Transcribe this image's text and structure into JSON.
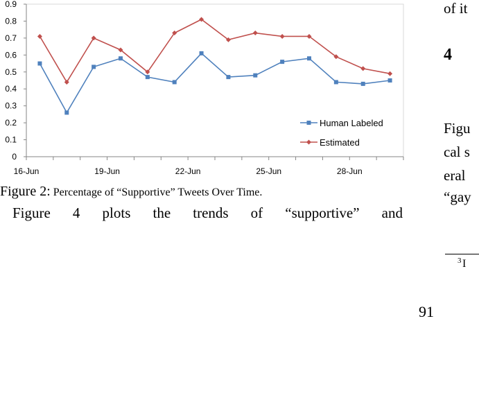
{
  "chart_data": {
    "type": "line",
    "title": "",
    "xlabel": "",
    "ylabel": "",
    "ylim": [
      0,
      0.9
    ],
    "yticks": [
      "0",
      "0.1",
      "0.2",
      "0.3",
      "0.4",
      "0.5",
      "0.6",
      "0.7",
      "0.8",
      "0.9"
    ],
    "x": [
      "16-Jun",
      "17-Jun",
      "18-Jun",
      "19-Jun",
      "20-Jun",
      "21-Jun",
      "22-Jun",
      "23-Jun",
      "24-Jun",
      "25-Jun",
      "26-Jun",
      "27-Jun",
      "28-Jun",
      "29-Jun"
    ],
    "x_tick_labels": [
      "16-Jun",
      "19-Jun",
      "22-Jun",
      "25-Jun",
      "28-Jun"
    ],
    "legend_position": "bottom-right",
    "grid": false,
    "series": [
      {
        "name": "Human Labeled",
        "color": "#4F81BD",
        "marker": "square",
        "values": [
          0.55,
          0.26,
          0.53,
          0.58,
          0.47,
          0.44,
          0.61,
          0.47,
          0.48,
          0.56,
          0.58,
          0.44,
          0.43,
          0.45
        ]
      },
      {
        "name": "Estimated",
        "color": "#C0504D",
        "marker": "diamond",
        "values": [
          0.71,
          0.44,
          0.7,
          0.63,
          0.5,
          0.73,
          0.81,
          0.69,
          0.73,
          0.71,
          0.71,
          0.59,
          0.52,
          0.49
        ]
      }
    ]
  },
  "caption": {
    "label": "Figure 2:",
    "text": "Percentage of “Supportive” Tweets Over Time."
  },
  "body_text": "Figure 4 plots the trends of “supportive” and",
  "right_column": {
    "line1": "of it",
    "heading": "4",
    "lines": [
      "Figu",
      "cal s",
      "eral",
      "“gay"
    ],
    "footnote_mark": "3",
    "footnote_start": "I"
  },
  "page_number": "91"
}
